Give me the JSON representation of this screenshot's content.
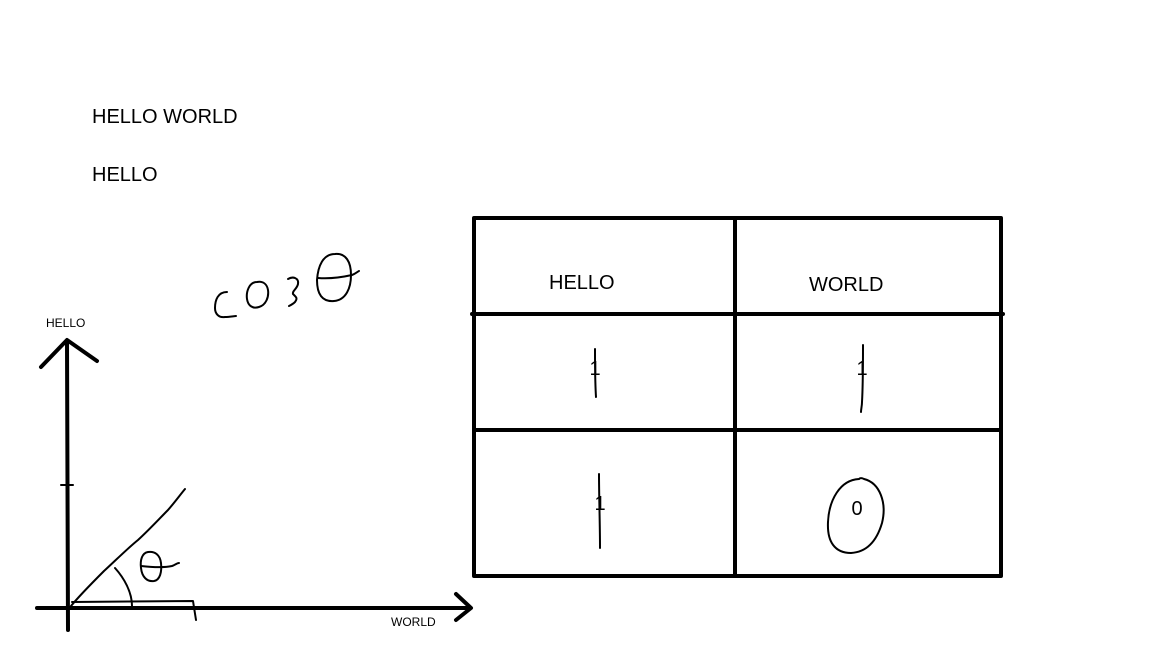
{
  "texts": {
    "title": "HELLO WORLD",
    "subtitle": "HELLO"
  },
  "graph": {
    "y_axis_label": "HELLO",
    "x_axis_label": "WORLD",
    "formula": "cos θ",
    "angle_symbol": "θ"
  },
  "table": {
    "headers": [
      "HELLO",
      "WORLD"
    ],
    "rows": [
      [
        "1",
        "1"
      ],
      [
        "1",
        "0"
      ]
    ]
  },
  "colors": {
    "ink": "#000000",
    "background": "#ffffff"
  }
}
